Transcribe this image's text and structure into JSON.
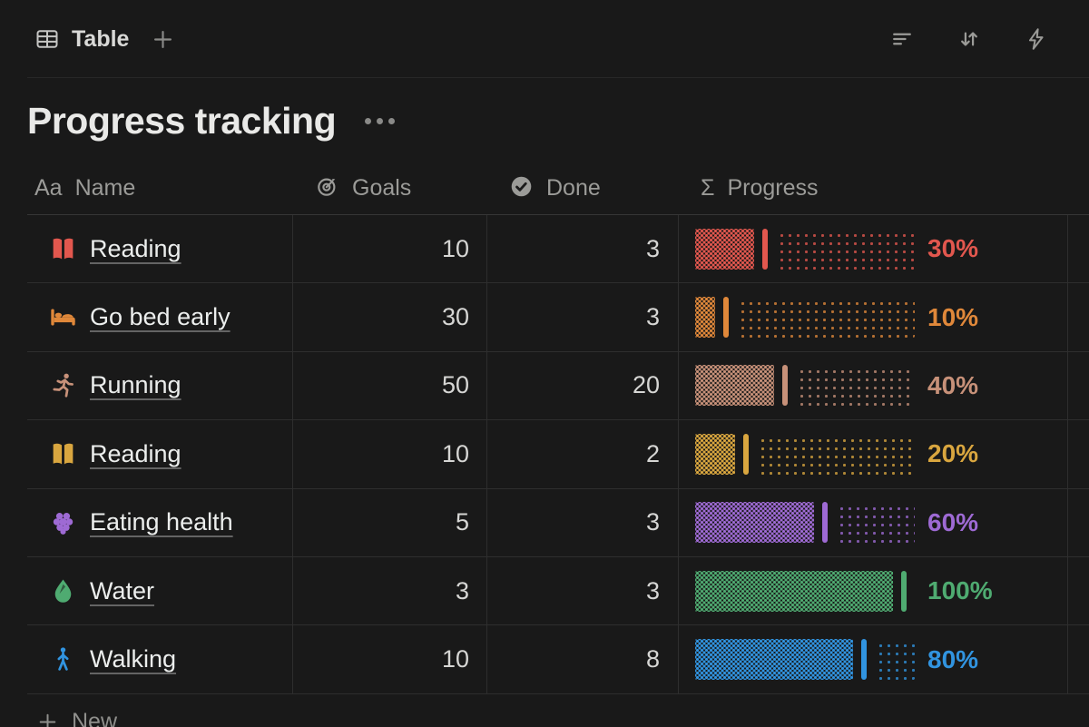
{
  "toolbar": {
    "view_label": "Table",
    "view_icon": "table-icon",
    "add_view_icon": "plus-icon",
    "actions": [
      {
        "icon": "filter-icon"
      },
      {
        "icon": "sort-icon"
      },
      {
        "icon": "lightning-icon"
      }
    ]
  },
  "title": {
    "text": "Progress tracking",
    "menu_icon": "ellipsis-icon"
  },
  "columns": [
    {
      "label": "Name",
      "icon": "text-icon"
    },
    {
      "label": "Goals",
      "icon": "target-icon"
    },
    {
      "label": "Done",
      "icon": "check-circle-icon"
    },
    {
      "label": "Progress",
      "icon": "sigma-icon"
    }
  ],
  "rows": [
    {
      "icon": "open-book-icon",
      "color": "#e2574e",
      "name": "Reading",
      "goals": "10",
      "done": "3",
      "percent": 30,
      "percent_label": "30%"
    },
    {
      "icon": "bed-icon",
      "color": "#e0883a",
      "name": "Go bed early",
      "goals": "30",
      "done": "3",
      "percent": 10,
      "percent_label": "10%"
    },
    {
      "icon": "runner-icon",
      "color": "#c79179",
      "name": "Running",
      "goals": "50",
      "done": "20",
      "percent": 40,
      "percent_label": "40%"
    },
    {
      "icon": "open-book-icon",
      "color": "#d9a63f",
      "name": "Reading",
      "goals": "10",
      "done": "2",
      "percent": 20,
      "percent_label": "20%"
    },
    {
      "icon": "grapes-icon",
      "color": "#9e6ad4",
      "name": "Eating health",
      "goals": "5",
      "done": "3",
      "percent": 60,
      "percent_label": "60%"
    },
    {
      "icon": "droplet-icon",
      "color": "#4fab71",
      "name": "Water",
      "goals": "3",
      "done": "3",
      "percent": 100,
      "percent_label": "100%"
    },
    {
      "icon": "walker-icon",
      "color": "#3194e0",
      "name": "Walking",
      "goals": "10",
      "done": "8",
      "percent": 80,
      "percent_label": "80%"
    }
  ],
  "footer": {
    "new_row_label": "New"
  }
}
